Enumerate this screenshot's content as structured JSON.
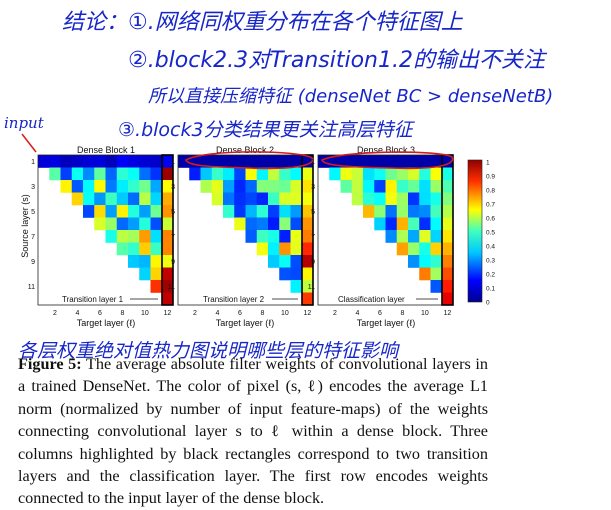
{
  "annotations": {
    "note1": "结论：①.网络同权重分布在各个特征图上",
    "note2": "②.block2.3对Transition1.2的输出不关注",
    "note3": "所以直接压缩特征 (denseNet BC > denseNetB)",
    "note4": "③.block3分类结果更关注高层特征",
    "note5": "各层权重绝对值热力图说明哪些层的特征影响",
    "input": "input"
  },
  "figure": {
    "panels": [
      {
        "title": "Dense Block 1",
        "bottom_label": "Transition layer 1"
      },
      {
        "title": "Dense Block 2",
        "bottom_label": "Transition layer 2"
      },
      {
        "title": "Dense Block 3",
        "bottom_label": "Classification layer"
      }
    ],
    "xlabel": "Target layer (ℓ)",
    "ylabel": "Source layer (s)",
    "x_ticks": [
      "2",
      "4",
      "6",
      "8",
      "10",
      "12"
    ],
    "y_ticks": [
      "1",
      "3",
      "5",
      "7",
      "9",
      "11"
    ],
    "colorbar_ticks": [
      "1",
      "0.9",
      "0.8",
      "0.7",
      "0.6",
      "0.5",
      "0.4",
      "0.3",
      "0.2",
      "0.1",
      "0"
    ]
  },
  "caption": {
    "label": "Figure 5:",
    "text": "The average absolute filter weights of convolutional layers in a trained DenseNet. The color of pixel (s, ℓ) encodes the average L1 norm (normalized by number of input feature-maps) of the weights connecting convolutional layer s to ℓ within a dense block. Three columns highlighted by black rectangles correspond to two transition layers and the classification layer. The first row encodes weights connected to the input layer of the dense block."
  }
}
